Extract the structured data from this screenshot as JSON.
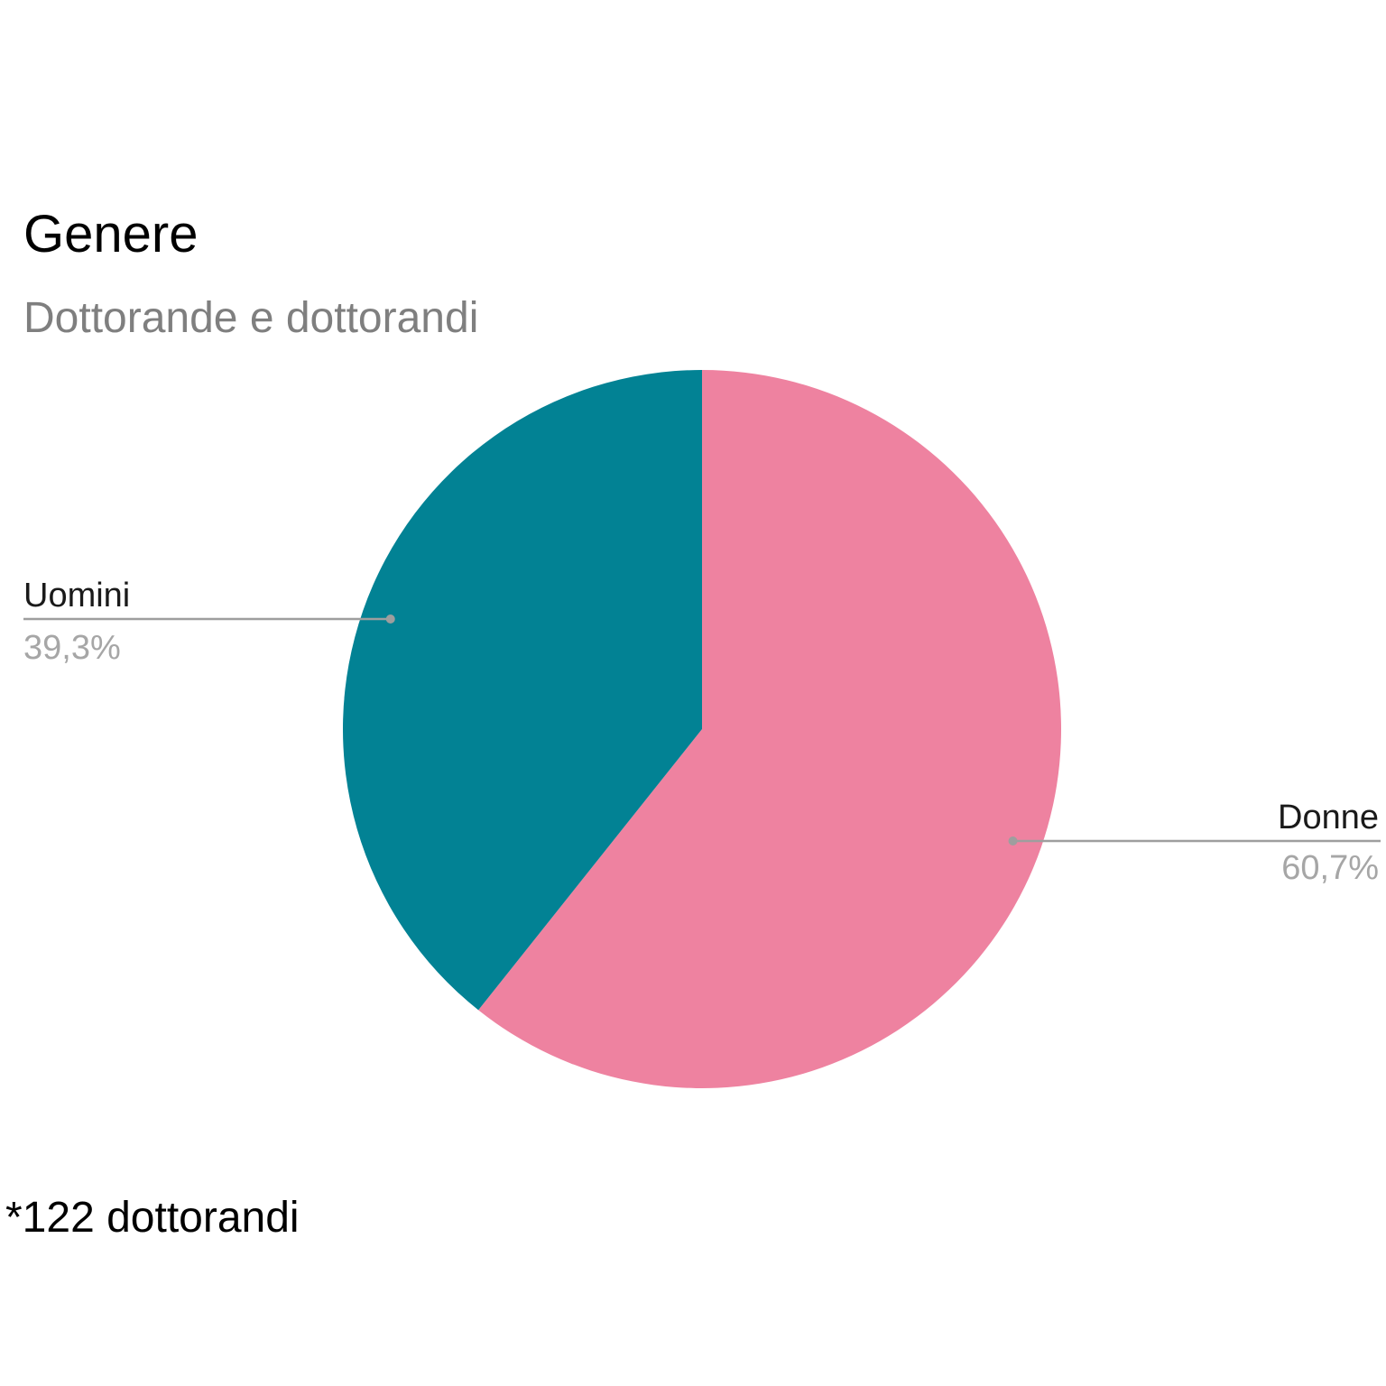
{
  "chart_data": {
    "type": "pie",
    "title": "Genere",
    "subtitle": "Dottorande e dottorandi",
    "slices": [
      {
        "label": "Donne",
        "value": 60.7,
        "display": "60,7%",
        "color": "#ee82a0"
      },
      {
        "label": "Uomini",
        "value": 39.3,
        "display": "39,3%",
        "color": "#028294"
      }
    ],
    "start_angle_deg": 0,
    "direction": "clockwise",
    "legend": "none",
    "label_style": "outside-with-leader-lines"
  },
  "footnote": "*122 dottorandi",
  "colors": {
    "leader_line": "#9e9e9e",
    "label_text": "#1a1a1a",
    "value_text": "#a6a6a6"
  }
}
